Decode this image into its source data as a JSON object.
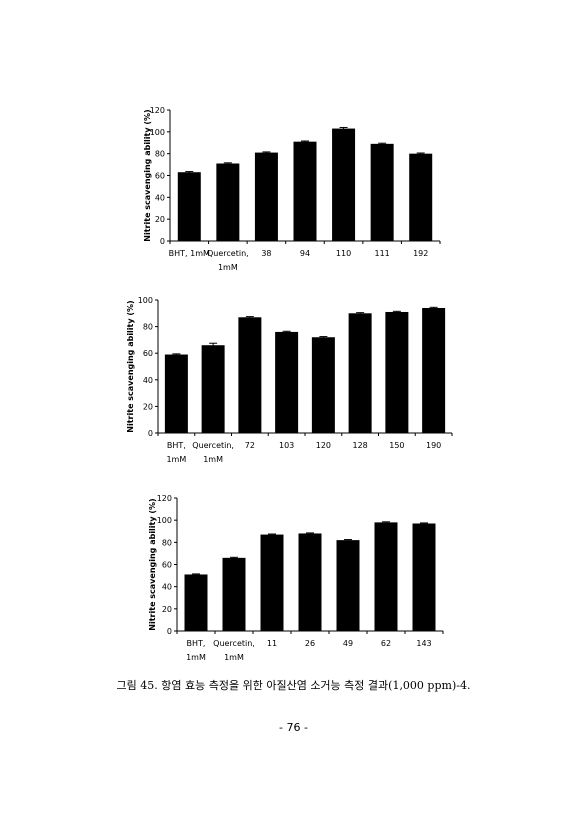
{
  "chart_data": [
    {
      "type": "bar",
      "ylabel": "Nitrite scavenging ability (%)",
      "ylim": [
        0,
        120
      ],
      "yticks": [
        0,
        20,
        40,
        60,
        80,
        100,
        120
      ],
      "categories": [
        [
          "BHT, 1mM"
        ],
        [
          "Quercetin,",
          "1mM"
        ],
        [
          "38"
        ],
        [
          "94"
        ],
        [
          "110"
        ],
        [
          "111"
        ],
        [
          "192"
        ]
      ],
      "values": [
        63,
        71,
        81,
        91,
        103,
        89,
        80
      ],
      "errors": [
        0.6,
        0.6,
        0.6,
        0.6,
        1.0,
        0.6,
        0.6
      ],
      "bar_color": "#000000",
      "grid": false
    },
    {
      "type": "bar",
      "ylabel": "Nitrite scavenging ability (%)",
      "ylim": [
        0,
        100
      ],
      "yticks": [
        0,
        20,
        40,
        60,
        80,
        100
      ],
      "categories": [
        [
          "BHT,",
          "1mM"
        ],
        [
          "Quercetin,",
          "1mM"
        ],
        [
          "72"
        ],
        [
          "103"
        ],
        [
          "120"
        ],
        [
          "128"
        ],
        [
          "150"
        ],
        [
          "190"
        ]
      ],
      "values": [
        59,
        66,
        87,
        76,
        72,
        90,
        91,
        94
      ],
      "errors": [
        0.5,
        1.5,
        0.5,
        0.5,
        0.5,
        0.5,
        0.5,
        0.5
      ],
      "bar_color": "#000000",
      "grid": false
    },
    {
      "type": "bar",
      "ylabel": "Nitrite scavenging ability (%)",
      "ylim": [
        0,
        120
      ],
      "yticks": [
        0,
        20,
        40,
        60,
        80,
        100,
        120
      ],
      "categories": [
        [
          "BHT,",
          "1mM"
        ],
        [
          "Quercetin,",
          "1mM"
        ],
        [
          "11"
        ],
        [
          "26"
        ],
        [
          "49"
        ],
        [
          "62"
        ],
        [
          "143"
        ]
      ],
      "values": [
        51,
        66,
        87,
        88,
        82,
        98,
        97
      ],
      "errors": [
        0.5,
        0.5,
        0.5,
        0.5,
        0.5,
        0.5,
        0.5
      ],
      "bar_color": "#000000",
      "grid": false
    }
  ],
  "caption": "그림 45. 항염 효능 측정을 위한 아질산염 소거능 측정 결과(1,000 ppm)-4.",
  "page_number": "- 76 -"
}
